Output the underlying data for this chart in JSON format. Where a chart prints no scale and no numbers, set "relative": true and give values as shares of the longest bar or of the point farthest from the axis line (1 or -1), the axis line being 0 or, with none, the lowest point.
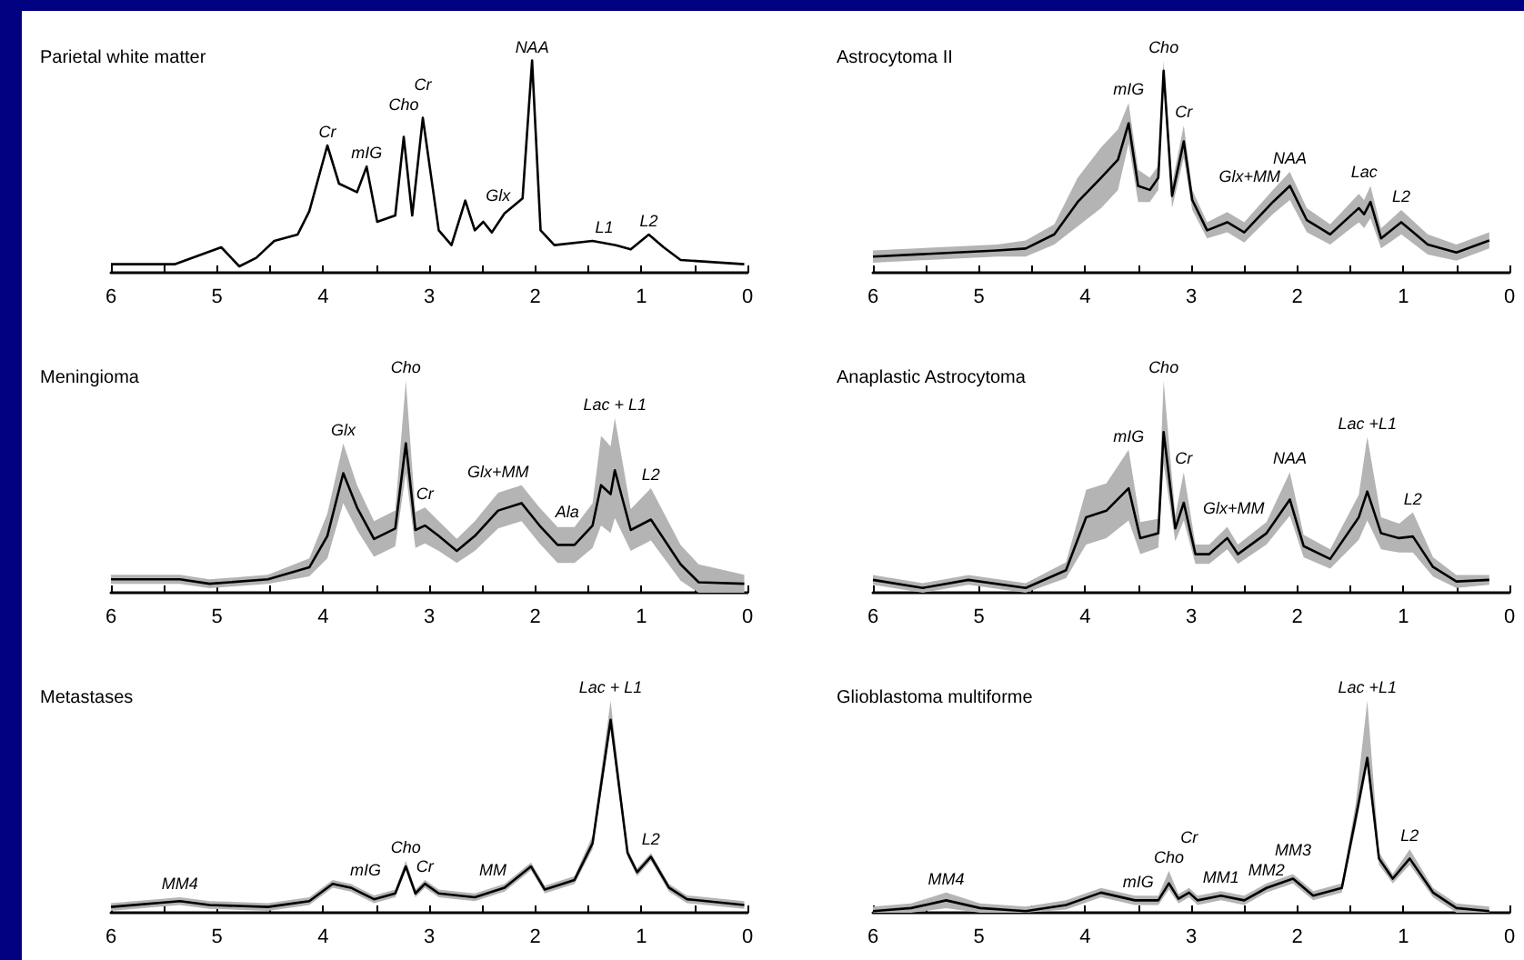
{
  "chart_data": [
    {
      "type": "line",
      "title": "Parietal white matter",
      "relative": true,
      "xlim": [
        6,
        0
      ],
      "xticks": [
        6,
        {
          "value": 5.5,
          "label": null
        },
        5,
        {
          "value": 4.5,
          "label": null
        },
        4,
        {
          "value": 3.5,
          "label": null
        },
        3,
        {
          "value": 2.5,
          "label": null
        },
        2,
        {
          "value": 1.5,
          "label": null
        },
        1,
        {
          "value": 0.5,
          "label": null
        },
        0
      ],
      "x": [
        6.0,
        5.4,
        4.96,
        4.79,
        4.63,
        4.46,
        4.24,
        4.13,
        3.96,
        3.85,
        3.68,
        3.59,
        3.49,
        3.32,
        3.24,
        3.16,
        3.06,
        2.91,
        2.79,
        2.66,
        2.57,
        2.49,
        2.41,
        2.29,
        2.12,
        2.03,
        1.95,
        1.82,
        1.46,
        1.24,
        1.1,
        0.93,
        0.79,
        0.63,
        0.03
      ],
      "series": [
        {
          "color": "#000000",
          "values": [
            0.04,
            0.04,
            0.12,
            0.03,
            0.07,
            0.15,
            0.18,
            0.29,
            0.6,
            0.42,
            0.38,
            0.5,
            0.24,
            0.27,
            0.64,
            0.27,
            0.73,
            0.2,
            0.13,
            0.34,
            0.2,
            0.24,
            0.19,
            0.28,
            0.35,
            1,
            0.2,
            0.13,
            0.15,
            0.13,
            0.11,
            0.18,
            0.12,
            0.06,
            0.04
          ]
        }
      ],
      "annotations": [
        {
          "text": "Cr",
          "x": 3.96,
          "y": 0.6
        },
        {
          "text": "mIG",
          "x": 3.59,
          "y": 0.5
        },
        {
          "text": "Cho",
          "x": 3.24,
          "y": 0.64
        },
        {
          "text": "Cr",
          "x": 3.06,
          "y": 0.73
        },
        {
          "text": "NAA",
          "x": 2.03,
          "y": 1
        },
        {
          "text": "Glx",
          "x": 2.35,
          "y": 0.3
        },
        {
          "text": "L1",
          "x": 1.35,
          "y": 0.15
        },
        {
          "text": "L2",
          "x": 0.93,
          "y": 0.18
        }
      ]
    },
    {
      "type": "line",
      "title": "Astrocytoma II",
      "relative": true,
      "xlim": [
        6,
        0
      ],
      "xticks": [
        6,
        {
          "value": 5.5,
          "label": null
        },
        5,
        {
          "value": 4.5,
          "label": null
        },
        4,
        {
          "value": 3.5,
          "label": null
        },
        3,
        {
          "value": 2.5,
          "label": null
        },
        2,
        {
          "value": 1.5,
          "label": null
        },
        1,
        {
          "value": 0.5,
          "label": null
        },
        0
      ],
      "x": [
        6.0,
        4.83,
        4.56,
        4.29,
        4.07,
        3.85,
        3.69,
        3.59,
        3.5,
        3.39,
        3.31,
        3.26,
        3.18,
        3.07,
        2.99,
        2.85,
        2.66,
        2.5,
        2.23,
        2.07,
        1.91,
        1.69,
        1.42,
        1.37,
        1.31,
        1.21,
        1.02,
        0.77,
        0.5,
        0.19
      ],
      "series": [
        {
          "color": "#000000",
          "values": [
            0.08,
            0.11,
            0.12,
            0.19,
            0.35,
            0.47,
            0.56,
            0.74,
            0.43,
            0.41,
            0.47,
            1,
            0.38,
            0.65,
            0.36,
            0.21,
            0.25,
            0.2,
            0.35,
            0.43,
            0.26,
            0.19,
            0.32,
            0.29,
            0.35,
            0.17,
            0.25,
            0.14,
            0.1,
            0.16
          ],
          "lower": [
            0.05,
            0.08,
            0.08,
            0.14,
            0.23,
            0.32,
            0.41,
            0.64,
            0.35,
            0.35,
            0.41,
            0.95,
            0.32,
            0.57,
            0.31,
            0.17,
            0.2,
            0.15,
            0.29,
            0.36,
            0.2,
            0.14,
            0.25,
            0.22,
            0.27,
            0.12,
            0.19,
            0.09,
            0.06,
            0.12
          ],
          "upper": [
            0.11,
            0.14,
            0.16,
            0.24,
            0.47,
            0.62,
            0.71,
            0.84,
            0.51,
            0.47,
            0.53,
            1.05,
            0.44,
            0.73,
            0.41,
            0.25,
            0.3,
            0.25,
            0.41,
            0.5,
            0.32,
            0.24,
            0.39,
            0.36,
            0.43,
            0.22,
            0.31,
            0.19,
            0.14,
            0.2
          ]
        }
      ],
      "annotations": [
        {
          "text": "mIG",
          "x": 3.59,
          "y": 0.74
        },
        {
          "text": "Cho",
          "x": 3.26,
          "y": 1
        },
        {
          "text": "Cr",
          "x": 3.07,
          "y": 0.65
        },
        {
          "text": "Glx+MM",
          "x": 2.45,
          "y": 0.25
        },
        {
          "text": "NAA",
          "x": 2.07,
          "y": 0.43
        },
        {
          "text": "Lac",
          "x": 1.37,
          "y": 0.33
        },
        {
          "text": "L2",
          "x": 1.02,
          "y": 0.25
        }
      ]
    },
    {
      "type": "line",
      "title": "Meningioma",
      "relative": true,
      "xlim": [
        6,
        0
      ],
      "xticks": [
        6,
        {
          "value": 5.5,
          "label": null
        },
        5,
        {
          "value": 4.5,
          "label": null
        },
        4,
        {
          "value": 3.5,
          "label": null
        },
        3,
        {
          "value": 2.5,
          "label": null
        },
        2,
        {
          "value": 1.5,
          "label": null
        },
        1,
        {
          "value": 0.5,
          "label": null
        },
        0
      ],
      "x": [
        6.0,
        5.35,
        5.07,
        4.52,
        4.13,
        3.96,
        3.81,
        3.68,
        3.52,
        3.32,
        3.22,
        3.13,
        3.04,
        2.91,
        2.74,
        2.57,
        2.35,
        2.13,
        1.96,
        1.79,
        1.63,
        1.46,
        1.38,
        1.29,
        1.25,
        1.1,
        0.91,
        0.63,
        0.46,
        0.03
      ],
      "series": [
        {
          "color": "#000000",
          "values": [
            0.09,
            0.09,
            0.06,
            0.09,
            0.17,
            0.38,
            0.8,
            0.57,
            0.36,
            0.43,
            1,
            0.42,
            0.45,
            0.38,
            0.28,
            0.38,
            0.55,
            0.6,
            0.45,
            0.32,
            0.32,
            0.45,
            0.72,
            0.66,
            0.82,
            0.42,
            0.49,
            0.19,
            0.07,
            0.06
          ],
          "lower": [
            0.06,
            0.06,
            0.03,
            0.06,
            0.11,
            0.23,
            0.6,
            0.42,
            0.24,
            0.31,
            0.8,
            0.3,
            0.33,
            0.28,
            0.2,
            0.28,
            0.43,
            0.48,
            0.33,
            0.2,
            0.2,
            0.3,
            0.45,
            0.4,
            0.5,
            0.28,
            0.35,
            0.08,
            0.0,
            0.0
          ],
          "upper": [
            0.12,
            0.12,
            0.09,
            0.12,
            0.23,
            0.53,
            1.0,
            0.72,
            0.48,
            0.55,
            1.42,
            0.54,
            0.57,
            0.48,
            0.36,
            0.48,
            0.67,
            0.72,
            0.57,
            0.44,
            0.44,
            0.6,
            1.05,
            0.98,
            1.17,
            0.56,
            0.7,
            0.32,
            0.19,
            0.12
          ]
        }
      ],
      "annotations": [
        {
          "text": "Glx",
          "x": 3.81,
          "y": 0.8
        },
        {
          "text": "Cho",
          "x": 3.22,
          "y": 1.42
        },
        {
          "text": "Cr",
          "x": 3.04,
          "y": 0.45
        },
        {
          "text": "Glx+MM",
          "x": 2.35,
          "y": 0.55
        },
        {
          "text": "Ala",
          "x": 1.7,
          "y": 0.45
        },
        {
          "text": "Lac + L1",
          "x": 1.25,
          "y": 1.17
        },
        {
          "text": "L2",
          "x": 0.91,
          "y": 0.49
        }
      ]
    },
    {
      "type": "line",
      "title": "Anaplastic Astrocytoma",
      "relative": true,
      "xlim": [
        6,
        0
      ],
      "xticks": [
        6,
        {
          "value": 5.5,
          "label": null
        },
        5,
        {
          "value": 4.5,
          "label": null
        },
        4,
        {
          "value": 3.5,
          "label": null
        },
        3,
        {
          "value": 2.5,
          "label": null
        },
        2,
        {
          "value": 1.5,
          "label": null
        },
        1,
        {
          "value": 0.5,
          "label": null
        },
        0
      ],
      "x": [
        6.0,
        5.53,
        5.1,
        4.56,
        4.18,
        3.99,
        3.8,
        3.59,
        3.48,
        3.31,
        3.26,
        3.15,
        3.07,
        2.96,
        2.83,
        2.66,
        2.56,
        2.29,
        2.07,
        1.94,
        1.69,
        1.42,
        1.34,
        1.21,
        1.04,
        0.91,
        0.72,
        0.5,
        0.19
      ],
      "series": [
        {
          "color": "#000000",
          "values": [
            0.08,
            0.03,
            0.08,
            0.03,
            0.14,
            0.47,
            0.51,
            0.65,
            0.34,
            0.37,
            1,
            0.4,
            0.56,
            0.24,
            0.24,
            0.34,
            0.24,
            0.37,
            0.58,
            0.29,
            0.21,
            0.47,
            0.63,
            0.37,
            0.34,
            0.35,
            0.16,
            0.07,
            0.08
          ],
          "lower": [
            0.05,
            0.0,
            0.05,
            0.0,
            0.09,
            0.3,
            0.34,
            0.45,
            0.24,
            0.28,
            0.8,
            0.32,
            0.45,
            0.18,
            0.18,
            0.27,
            0.18,
            0.3,
            0.48,
            0.22,
            0.15,
            0.33,
            0.45,
            0.27,
            0.25,
            0.25,
            0.1,
            0.03,
            0.05
          ],
          "upper": [
            0.11,
            0.06,
            0.11,
            0.06,
            0.19,
            0.64,
            0.68,
            0.89,
            0.44,
            0.46,
            1.32,
            0.48,
            0.75,
            0.3,
            0.3,
            0.41,
            0.3,
            0.44,
            0.75,
            0.36,
            0.27,
            0.61,
            0.97,
            0.47,
            0.43,
            0.5,
            0.22,
            0.11,
            0.11
          ]
        }
      ],
      "annotations": [
        {
          "text": "mIG",
          "x": 3.59,
          "y": 0.65
        },
        {
          "text": "Cho",
          "x": 3.26,
          "y": 1.32
        },
        {
          "text": "Cr",
          "x": 3.07,
          "y": 0.56
        },
        {
          "text": "Glx+MM",
          "x": 2.6,
          "y": 0.34
        },
        {
          "text": "NAA",
          "x": 2.07,
          "y": 0.58
        },
        {
          "text": "Lac +L1",
          "x": 1.34,
          "y": 0.97
        },
        {
          "text": "L2",
          "x": 0.91,
          "y": 0.35
        }
      ]
    },
    {
      "type": "line",
      "title": "Metastases",
      "relative": true,
      "xlim": [
        6,
        0
      ],
      "xticks": [
        6,
        {
          "value": 5.5,
          "label": null
        },
        5,
        {
          "value": 4.5,
          "label": null
        },
        4,
        {
          "value": 3.5,
          "label": null
        },
        3,
        {
          "value": 2.5,
          "label": null
        },
        2,
        {
          "value": 1.5,
          "label": null
        },
        1,
        {
          "value": 0.5,
          "label": null
        },
        0
      ],
      "x": [
        6.0,
        5.35,
        5.07,
        4.52,
        4.13,
        3.91,
        3.74,
        3.52,
        3.32,
        3.22,
        3.13,
        3.04,
        2.91,
        2.57,
        2.29,
        2.04,
        1.91,
        1.63,
        1.46,
        1.29,
        1.13,
        1.04,
        0.91,
        0.74,
        0.57,
        0.03
      ],
      "series": [
        {
          "color": "#000000",
          "values": [
            0.03,
            0.06,
            0.04,
            0.03,
            0.06,
            0.15,
            0.13,
            0.07,
            0.1,
            0.24,
            0.1,
            0.15,
            0.1,
            0.08,
            0.13,
            0.24,
            0.12,
            0.17,
            0.36,
            1,
            0.31,
            0.21,
            0.29,
            0.13,
            0.07,
            0.04
          ],
          "lower": [
            0.01,
            0.04,
            0.02,
            0.01,
            0.04,
            0.13,
            0.11,
            0.05,
            0.08,
            0.22,
            0.08,
            0.13,
            0.08,
            0.06,
            0.11,
            0.22,
            0.1,
            0.15,
            0.33,
            0.95,
            0.29,
            0.19,
            0.27,
            0.11,
            0.05,
            0.02
          ],
          "upper": [
            0.05,
            0.08,
            0.06,
            0.05,
            0.08,
            0.17,
            0.15,
            0.09,
            0.12,
            0.27,
            0.12,
            0.17,
            0.12,
            0.1,
            0.15,
            0.26,
            0.14,
            0.19,
            0.4,
            1.1,
            0.33,
            0.23,
            0.31,
            0.15,
            0.09,
            0.06
          ]
        }
      ],
      "annotations": [
        {
          "text": "MM4",
          "x": 5.35,
          "y": 0.06
        },
        {
          "text": "mIG",
          "x": 3.6,
          "y": 0.08
        },
        {
          "text": "Cho",
          "x": 3.22,
          "y": 0.24
        },
        {
          "text": "Cr",
          "x": 3.04,
          "y": 0.15
        },
        {
          "text": "MM",
          "x": 2.4,
          "y": 0.12
        },
        {
          "text": "Lac + L1",
          "x": 1.29,
          "y": 1
        },
        {
          "text": "L2",
          "x": 0.91,
          "y": 0.29
        }
      ]
    },
    {
      "type": "line",
      "title": "Glioblastoma multiforme",
      "relative": true,
      "xlim": [
        6,
        0
      ],
      "xticks": [
        6,
        {
          "value": 5.5,
          "label": null
        },
        5,
        {
          "value": 4.5,
          "label": null
        },
        4,
        {
          "value": 3.5,
          "label": null
        },
        3,
        {
          "value": 2.5,
          "label": null
        },
        2,
        {
          "value": 1.5,
          "label": null
        },
        1,
        {
          "value": 0.5,
          "label": null
        },
        0
      ],
      "x": [
        6.0,
        5.64,
        5.31,
        4.99,
        4.56,
        4.18,
        3.85,
        3.53,
        3.31,
        3.21,
        3.12,
        3.02,
        2.94,
        2.72,
        2.5,
        2.29,
        2.04,
        1.85,
        1.58,
        1.45,
        1.34,
        1.23,
        1.1,
        0.94,
        0.72,
        0.5,
        0.19
      ],
      "series": [
        {
          "color": "#000000",
          "values": [
            0.01,
            0.03,
            0.08,
            0.03,
            0.01,
            0.05,
            0.13,
            0.08,
            0.08,
            0.19,
            0.09,
            0.13,
            0.08,
            0.11,
            0.08,
            0.16,
            0.22,
            0.11,
            0.16,
            0.61,
            1,
            0.35,
            0.22,
            0.35,
            0.13,
            0.03,
            0.01
          ],
          "lower": [
            0.0,
            0.0,
            0.03,
            0.0,
            0.0,
            0.02,
            0.1,
            0.05,
            0.05,
            0.15,
            0.06,
            0.1,
            0.05,
            0.08,
            0.05,
            0.13,
            0.19,
            0.08,
            0.13,
            0.55,
            0.95,
            0.31,
            0.19,
            0.31,
            0.1,
            0.0,
            0.0
          ],
          "upper": [
            0.04,
            0.06,
            0.13,
            0.06,
            0.04,
            0.08,
            0.16,
            0.11,
            0.11,
            0.27,
            0.12,
            0.16,
            0.11,
            0.14,
            0.11,
            0.19,
            0.25,
            0.14,
            0.19,
            0.7,
            1.37,
            0.39,
            0.25,
            0.41,
            0.16,
            0.06,
            0.04
          ]
        }
      ],
      "annotations": [
        {
          "text": "MM4",
          "x": 5.31,
          "y": 0.08
        },
        {
          "text": "mIG",
          "x": 3.5,
          "y": 0.08
        },
        {
          "text": "Cho",
          "x": 3.21,
          "y": 0.19
        },
        {
          "text": "Cr",
          "x": 3.02,
          "y": 0.13
        },
        {
          "text": "MM1",
          "x": 2.72,
          "y": 0.11
        },
        {
          "text": "MM2",
          "x": 2.29,
          "y": 0.16
        },
        {
          "text": "MM3",
          "x": 2.04,
          "y": 0.22
        },
        {
          "text": "Lac +L1",
          "x": 1.34,
          "y": 1.37
        },
        {
          "text": "L2",
          "x": 0.94,
          "y": 0.35
        }
      ]
    }
  ]
}
